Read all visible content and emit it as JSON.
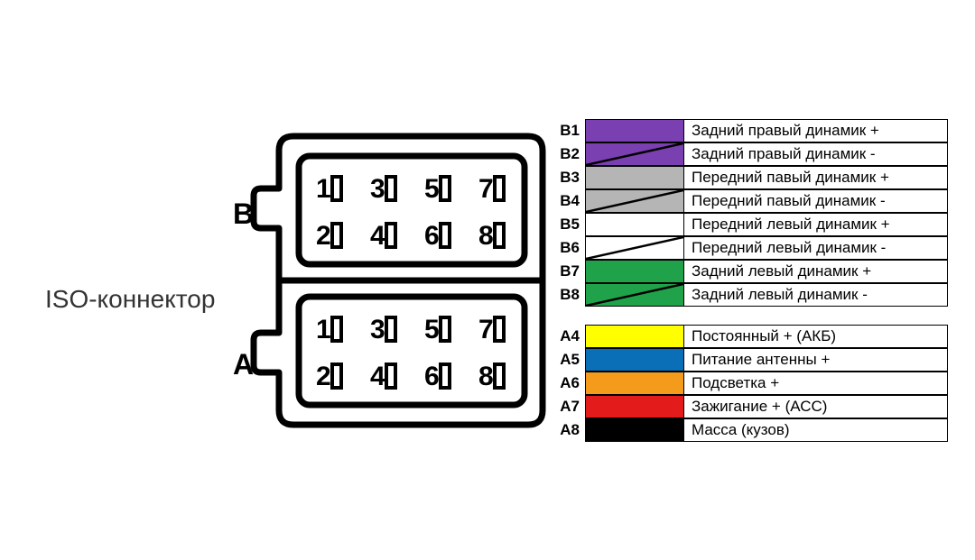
{
  "title": "ISO-коннектор",
  "connector": {
    "sections": [
      {
        "label": "B",
        "pins": [
          1,
          2,
          3,
          4,
          5,
          6,
          7,
          8
        ]
      },
      {
        "label": "A",
        "pins": [
          1,
          2,
          3,
          4,
          5,
          6,
          7,
          8
        ]
      }
    ],
    "stroke_width": 7,
    "corner_radius": 16
  },
  "legend_groups": [
    {
      "rows": [
        {
          "pin": "B1",
          "color": "#7a3fb0",
          "stripe": false,
          "desc": "Задний правый динамик +"
        },
        {
          "pin": "B2",
          "color": "#7a3fb0",
          "stripe": true,
          "desc": "Задний правый динамик -"
        },
        {
          "pin": "B3",
          "color": "#b5b5b5",
          "stripe": false,
          "desc": "Передний павый динамик +"
        },
        {
          "pin": "B4",
          "color": "#b5b5b5",
          "stripe": true,
          "desc": "Передний павый динамик -"
        },
        {
          "pin": "B5",
          "color": "#ffffff",
          "stripe": false,
          "desc": "Передний левый динамик +"
        },
        {
          "pin": "B6",
          "color": "#ffffff",
          "stripe": true,
          "desc": "Передний левый динамик -"
        },
        {
          "pin": "B7",
          "color": "#1fa24a",
          "stripe": false,
          "desc": "Задний левый динамик +"
        },
        {
          "pin": "B8",
          "color": "#1fa24a",
          "stripe": true,
          "desc": "Задний левый динамик -"
        }
      ]
    },
    {
      "rows": [
        {
          "pin": "A4",
          "color": "#ffff00",
          "stripe": false,
          "desc": "Постоянный + (АКБ)"
        },
        {
          "pin": "A5",
          "color": "#0b6fb8",
          "stripe": false,
          "desc": "Питание антенны +"
        },
        {
          "pin": "A6",
          "color": "#f59b1c",
          "stripe": false,
          "desc": "Подсветка +"
        },
        {
          "pin": "A7",
          "color": "#e31b1b",
          "stripe": false,
          "desc": "Зажигание + (АСС)"
        },
        {
          "pin": "A8",
          "color": "#000000",
          "stripe": false,
          "desc": "Масса (кузов)"
        }
      ]
    }
  ],
  "typography": {
    "legend_fontsize": 17,
    "label_fontsize": 28,
    "pin_fontsize": 30
  },
  "background_color": "#ffffff"
}
